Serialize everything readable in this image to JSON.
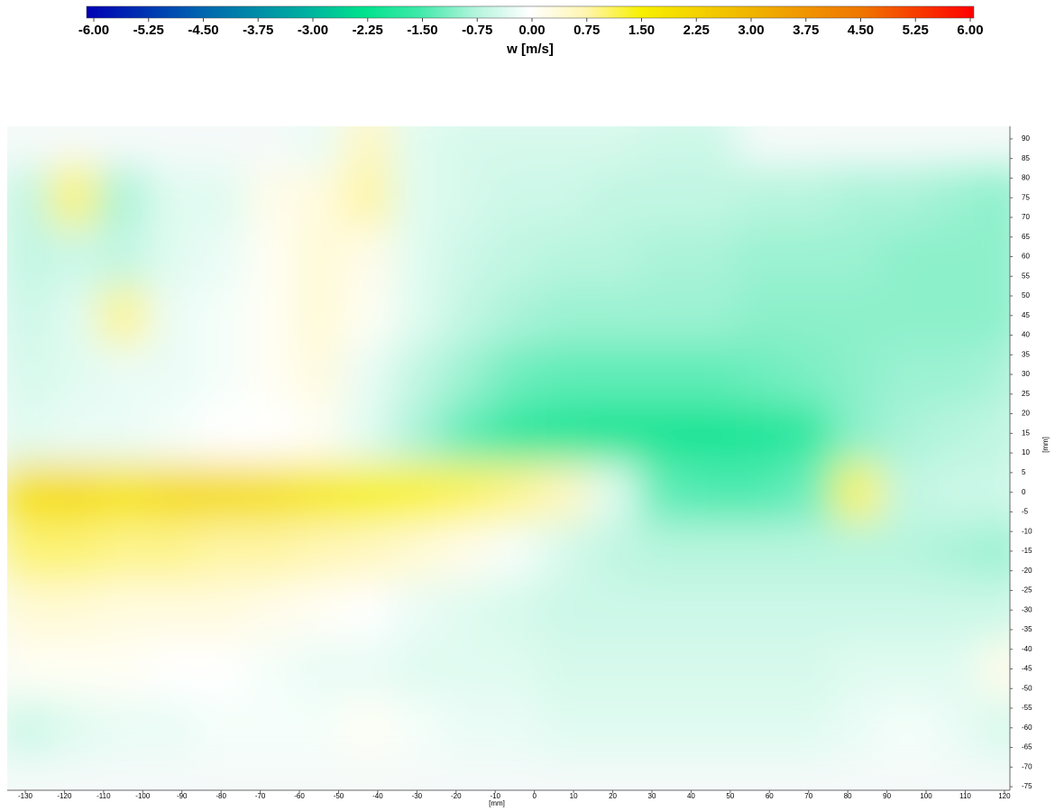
{
  "chart_data": {
    "type": "heatmap",
    "colorbar_label": "w [m/s]",
    "clim": [
      -6,
      6
    ],
    "colorscale": [
      [
        -6,
        "#0000b4"
      ],
      [
        -4.5,
        "#0062b0"
      ],
      [
        -3,
        "#00b2a0"
      ],
      [
        -2.25,
        "#00e28c"
      ],
      [
        -1.5,
        "#3fe9a9"
      ],
      [
        -0.75,
        "#b2f4dc"
      ],
      [
        0,
        "#ffffff"
      ],
      [
        0.75,
        "#fff5b0"
      ],
      [
        1.5,
        "#f7f000"
      ],
      [
        3,
        "#f0b400"
      ],
      [
        4.5,
        "#f07400"
      ],
      [
        6,
        "#ff0000"
      ]
    ],
    "cticks": [
      {
        "value": -6,
        "label": "-6.00"
      },
      {
        "value": -5.25,
        "label": "-5.25"
      },
      {
        "value": -4.5,
        "label": "-4.50"
      },
      {
        "value": -3.75,
        "label": "-3.75"
      },
      {
        "value": -3,
        "label": "-3.00"
      },
      {
        "value": -2.25,
        "label": "-2.25"
      },
      {
        "value": -1.5,
        "label": "-1.50"
      },
      {
        "value": -0.75,
        "label": "-0.75"
      },
      {
        "value": 0,
        "label": "0.00"
      },
      {
        "value": 0.75,
        "label": "0.75"
      },
      {
        "value": 1.5,
        "label": "1.50"
      },
      {
        "value": 2.25,
        "label": "2.25"
      },
      {
        "value": 3,
        "label": "3.00"
      },
      {
        "value": 3.75,
        "label": "3.75"
      },
      {
        "value": 4.5,
        "label": "4.50"
      },
      {
        "value": 5.25,
        "label": "5.25"
      },
      {
        "value": 6,
        "label": "6.00"
      }
    ],
    "x_label": "[mm]",
    "y_label": "[mm]",
    "xlim": [
      -134.6,
      121.4
    ],
    "ylim": [
      -75.9,
      93.2
    ],
    "xticks": [
      -130,
      -120,
      -110,
      -100,
      -90,
      -80,
      -70,
      -60,
      -50,
      -40,
      -30,
      -20,
      -10,
      0,
      10,
      20,
      30,
      40,
      50,
      60,
      70,
      80,
      90,
      100,
      110,
      120
    ],
    "yticks": [
      -75,
      -70,
      -65,
      -60,
      -55,
      -50,
      -45,
      -40,
      -35,
      -30,
      -25,
      -20,
      -15,
      -10,
      -5,
      0,
      5,
      10,
      15,
      20,
      25,
      30,
      35,
      40,
      45,
      50,
      55,
      60,
      65,
      70,
      75,
      80,
      85,
      90
    ],
    "x": [
      -130,
      -117.5,
      -105,
      -92.5,
      -80,
      -67.5,
      -55,
      -42.5,
      -30,
      -17.5,
      -5,
      7.5,
      20,
      32.5,
      45,
      57.5,
      70,
      82.5,
      95,
      107.5,
      120
    ],
    "y": [
      90,
      75,
      60,
      45,
      30,
      15,
      0,
      -15,
      -30,
      -45,
      -60
    ],
    "values": [
      [
        null,
        null,
        null,
        null,
        null,
        null,
        -0.2,
        0.6,
        -0.3,
        -0.4,
        -0.4,
        -0.4,
        -0.4,
        -0.5,
        -0.5,
        null,
        null,
        null,
        null,
        null,
        null
      ],
      [
        -0.6,
        1.0,
        -0.8,
        -0.3,
        -0.3,
        0.2,
        0.3,
        0.8,
        -0.3,
        -0.4,
        -0.5,
        -0.5,
        -0.6,
        -0.6,
        -0.6,
        -0.7,
        -0.7,
        -0.8,
        -0.8,
        -0.9,
        -1.0
      ],
      [
        -0.6,
        -0.5,
        -0.6,
        -0.3,
        -0.2,
        0.1,
        0.4,
        0.2,
        -0.3,
        -0.5,
        -0.6,
        -0.7,
        -0.7,
        -0.8,
        -0.8,
        -0.9,
        -0.9,
        -0.9,
        -1.0,
        -1.0,
        -1.0
      ],
      [
        -0.5,
        -0.3,
        0.9,
        -0.2,
        -0.1,
        0.1,
        0.4,
        0.1,
        -0.3,
        -0.6,
        -0.8,
        -0.9,
        -0.9,
        -0.9,
        -0.9,
        -1.0,
        -1.0,
        -1.0,
        -1.0,
        -1.0,
        -1.0
      ],
      [
        -0.4,
        -0.3,
        -0.2,
        -0.2,
        -0.1,
        0.1,
        0.3,
        -0.2,
        -0.6,
        -0.9,
        -1.2,
        -1.3,
        -1.3,
        -1.3,
        -1.3,
        -1.2,
        -1.1,
        -1.0,
        -0.9,
        -0.9,
        -0.8
      ],
      [
        -0.3,
        -0.2,
        -0.2,
        -0.1,
        0.0,
        0.0,
        0.1,
        -0.3,
        -0.8,
        -1.3,
        -1.7,
        -1.9,
        -2.0,
        -2.0,
        -2.0,
        -1.9,
        -1.7,
        -1.0,
        -0.8,
        -0.7,
        -0.6
      ],
      [
        1.9,
        2.0,
        1.8,
        2.0,
        2.0,
        1.9,
        1.7,
        1.5,
        1.3,
        1.1,
        0.9,
        0.6,
        -0.3,
        -1.3,
        -1.4,
        -1.4,
        -1.2,
        1.1,
        -0.6,
        -0.5,
        -0.5
      ],
      [
        1.0,
        1.0,
        0.9,
        0.9,
        0.8,
        0.8,
        0.7,
        0.6,
        0.4,
        0.2,
        -0.1,
        -0.4,
        -0.6,
        -0.7,
        -0.7,
        -0.7,
        -0.7,
        -0.7,
        -0.7,
        -0.8,
        -0.9
      ],
      [
        0.4,
        0.4,
        0.3,
        0.3,
        0.3,
        0.2,
        0.1,
        0.0,
        -0.2,
        -0.3,
        -0.4,
        -0.5,
        -0.5,
        -0.5,
        -0.5,
        -0.5,
        -0.5,
        -0.5,
        -0.5,
        -0.5,
        -0.5
      ],
      [
        0.1,
        0.1,
        0.1,
        0.0,
        0.0,
        -0.1,
        -0.2,
        -0.2,
        -0.3,
        -0.3,
        -0.3,
        -0.4,
        -0.4,
        -0.4,
        -0.4,
        -0.4,
        -0.4,
        -0.3,
        -0.3,
        -0.3,
        0.2
      ],
      [
        -0.5,
        -0.3,
        -0.2,
        -0.2,
        -0.1,
        -0.1,
        -0.1,
        0.1,
        -0.1,
        -0.2,
        -0.2,
        -0.3,
        -0.3,
        -0.3,
        -0.3,
        -0.3,
        -0.3,
        -0.2,
        -0.1,
        -0.2,
        -0.4
      ]
    ]
  }
}
